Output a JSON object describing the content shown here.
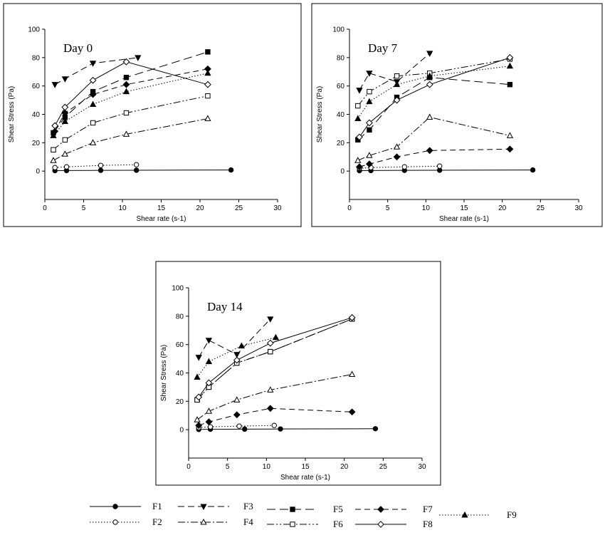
{
  "legend": [
    {
      "id": "F1",
      "label": "F1"
    },
    {
      "id": "F2",
      "label": "F2"
    },
    {
      "id": "F3",
      "label": "F3"
    },
    {
      "id": "F4",
      "label": "F4"
    },
    {
      "id": "F5",
      "label": "F5"
    },
    {
      "id": "F6",
      "label": "F6"
    },
    {
      "id": "F7",
      "label": "F7"
    },
    {
      "id": "F8",
      "label": "F8"
    },
    {
      "id": "F9",
      "label": "F9"
    }
  ],
  "series_styles": {
    "F1": {
      "dash": "",
      "marker": "circle",
      "fill": "#000000"
    },
    "F2": {
      "dash": "1.5,2.5",
      "marker": "circle",
      "fill": "#ffffff"
    },
    "F3": {
      "dash": "9,5",
      "marker": "triangle-down",
      "fill": "#000000"
    },
    "F4": {
      "dash": "10,3,2,3",
      "marker": "triangle-up",
      "fill": "#ffffff"
    },
    "F5": {
      "dash": "12,6",
      "marker": "square",
      "fill": "#000000"
    },
    "F6": {
      "dash": "10,3,2,3,2,3",
      "marker": "square",
      "fill": "#ffffff"
    },
    "F7": {
      "dash": "8,5",
      "marker": "diamond",
      "fill": "#000000"
    },
    "F8": {
      "dash": "",
      "marker": "diamond",
      "fill": "#ffffff"
    },
    "F9": {
      "dash": "1.5,2.5",
      "marker": "triangle-up",
      "fill": "#000000"
    }
  },
  "chart_data": [
    {
      "type": "line",
      "title": "Day 0",
      "xlabel": "Shear rate (s-1)",
      "ylabel": "Shear Stress (Pa)",
      "xlim": [
        0,
        30
      ],
      "ylim": [
        -20,
        100
      ],
      "xticks": [
        0,
        5,
        10,
        15,
        20,
        25,
        30
      ],
      "yticks": [
        0,
        20,
        40,
        60,
        80,
        100
      ],
      "grid": false,
      "series": [
        {
          "name": "F1",
          "x": [
            1.3,
            2.8,
            7.2,
            11.8,
            24
          ],
          "y": [
            0.3,
            0.4,
            0.5,
            0.6,
            0.8
          ]
        },
        {
          "name": "F2",
          "x": [
            1.3,
            2.8,
            7.2,
            11.8
          ],
          "y": [
            2.5,
            3,
            4,
            4.5
          ]
        },
        {
          "name": "F3",
          "x": [
            1.3,
            2.6,
            6.2,
            12
          ],
          "y": [
            61,
            65,
            76,
            80
          ]
        },
        {
          "name": "F4",
          "x": [
            1.1,
            2.6,
            6.2,
            10.5,
            21
          ],
          "y": [
            7.5,
            12,
            20,
            26,
            37
          ]
        },
        {
          "name": "F5",
          "x": [
            1.1,
            2.6,
            6.2,
            10.5,
            21
          ],
          "y": [
            27,
            38,
            56,
            66,
            84
          ]
        },
        {
          "name": "F6",
          "x": [
            1.1,
            2.6,
            6.2,
            10.5,
            21
          ],
          "y": [
            15,
            22,
            34,
            41,
            53
          ]
        },
        {
          "name": "F7",
          "x": [
            1.3,
            2.6,
            6.2,
            10.5,
            21
          ],
          "y": [
            28,
            41,
            54,
            61,
            72
          ]
        },
        {
          "name": "F8",
          "x": [
            1.3,
            2.6,
            6.2,
            10.5,
            21
          ],
          "y": [
            32,
            45,
            64,
            77,
            61
          ]
        },
        {
          "name": "F9",
          "x": [
            1.1,
            2.6,
            6.2,
            10.5,
            21
          ],
          "y": [
            25,
            35,
            47,
            56,
            69
          ]
        }
      ]
    },
    {
      "type": "line",
      "title": "Day 7",
      "xlabel": "Shear rate (s-1)",
      "ylabel": "Shear Stress (Pa)",
      "xlim": [
        0,
        30
      ],
      "ylim": [
        -20,
        100
      ],
      "xticks": [
        0,
        5,
        10,
        15,
        20,
        25,
        30
      ],
      "yticks": [
        0,
        20,
        40,
        60,
        80,
        100
      ],
      "grid": false,
      "series": [
        {
          "name": "F1",
          "x": [
            1.3,
            2.8,
            7.2,
            11.8,
            24
          ],
          "y": [
            0.3,
            0.4,
            0.5,
            0.6,
            0.8
          ]
        },
        {
          "name": "F2",
          "x": [
            1.3,
            2.8,
            7.2,
            11.8
          ],
          "y": [
            2,
            2.5,
            3,
            3.5
          ]
        },
        {
          "name": "F3",
          "x": [
            1.3,
            2.6,
            6.2,
            10.5
          ],
          "y": [
            57,
            69,
            63,
            83
          ]
        },
        {
          "name": "F4",
          "x": [
            1.1,
            2.6,
            6.2,
            10.5,
            21
          ],
          "y": [
            7.5,
            11,
            17,
            38,
            25
          ]
        },
        {
          "name": "F5",
          "x": [
            1.1,
            2.6,
            6.2,
            10.5,
            21
          ],
          "y": [
            22,
            29,
            52,
            66,
            61
          ]
        },
        {
          "name": "F6",
          "x": [
            1.1,
            2.6,
            6.2,
            10.5,
            21
          ],
          "y": [
            46,
            56,
            67,
            69,
            79
          ]
        },
        {
          "name": "F7",
          "x": [
            1.3,
            2.6,
            6.2,
            10.5,
            21
          ],
          "y": [
            3,
            5,
            10,
            14.5,
            15.5
          ]
        },
        {
          "name": "F8",
          "x": [
            1.3,
            2.6,
            6.2,
            10.5,
            21
          ],
          "y": [
            24,
            34,
            50,
            61,
            80
          ]
        },
        {
          "name": "F9",
          "x": [
            1.1,
            2.6,
            6.2,
            10.5,
            21
          ],
          "y": [
            37,
            49,
            61,
            67,
            74
          ]
        }
      ]
    },
    {
      "type": "line",
      "title": "Day 14",
      "xlabel": "Shear rate (s-1)",
      "ylabel": "Shear Stress (Pa)",
      "xlim": [
        0,
        30
      ],
      "ylim": [
        -20,
        100
      ],
      "xticks": [
        0,
        5,
        10,
        15,
        20,
        25,
        30
      ],
      "yticks": [
        0,
        20,
        40,
        60,
        80,
        100
      ],
      "grid": false,
      "series": [
        {
          "name": "F1",
          "x": [
            1.3,
            2.8,
            7.2,
            11.8,
            24
          ],
          "y": [
            0.2,
            0.3,
            0.4,
            0.5,
            0.7
          ]
        },
        {
          "name": "F2",
          "x": [
            1.3,
            2.8,
            6.5,
            11
          ],
          "y": [
            1.5,
            2,
            2.5,
            3
          ]
        },
        {
          "name": "F3",
          "x": [
            1.3,
            2.6,
            6.2,
            10.5
          ],
          "y": [
            51,
            63,
            53,
            78
          ]
        },
        {
          "name": "F4",
          "x": [
            1.1,
            2.6,
            6.2,
            10.5,
            21
          ],
          "y": [
            7,
            13,
            21,
            28,
            39
          ]
        },
        {
          "name": "F5",
          "x": [
            1.1,
            2.6,
            6.2,
            10.5,
            21
          ],
          "y": [
            21,
            30,
            47,
            55,
            78
          ]
        },
        {
          "name": "F6",
          "x": [
            1.1,
            2.6,
            6.2,
            10.5,
            21
          ],
          "y": [
            21,
            30,
            47,
            55,
            78
          ]
        },
        {
          "name": "F7",
          "x": [
            1.3,
            2.6,
            6.2,
            10.5,
            21
          ],
          "y": [
            3,
            5.5,
            10.5,
            15,
            12.5
          ]
        },
        {
          "name": "F8",
          "x": [
            1.3,
            2.6,
            6.2,
            10.5,
            21
          ],
          "y": [
            23,
            33,
            49,
            61,
            79
          ]
        },
        {
          "name": "F9",
          "x": [
            1.1,
            2.6,
            6.8,
            11.2
          ],
          "y": [
            37,
            48,
            59,
            65
          ]
        }
      ]
    }
  ]
}
